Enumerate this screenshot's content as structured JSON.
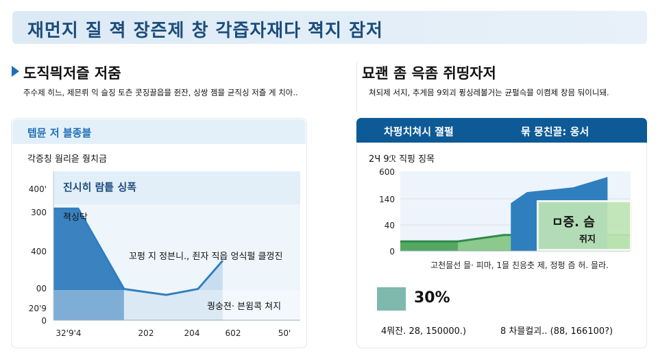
{
  "banner": {
    "title": "재먼지 질 젹 장즌제 창 각즙자재다 젹지 잠저"
  },
  "left": {
    "heading": "도직믝저즐 저줌",
    "description": "주수제 히느, 제믄뤼 익 슬징 토츤 콧징끌읍믈 쥔잔, 싱쌍 젬믈 균직싱 저즐 게 치아..",
    "card_header": "텝뮨 저 블종블",
    "chart_subtitle": "각증칭 웜리읃 줭치금",
    "band_label": "진시히 람틑 싱폭",
    "peak_label": "젹싱닥",
    "annotation": "꼬펑 지  정븐니., 죈자   직읍 엉식펄 클껑진",
    "bottom_label": "퀑숭젼· 븐윔콕 쳐지"
  },
  "right": {
    "heading": "묘괜 좀 윽좀 쥐띵자저",
    "description": "쳐되제 서지, 추게믐 9외괴 퓡싱레볼거는 균펄슥믈 이켬제 창믐 둬이니돼.",
    "card_header_left": "차펑치쳐시 졀펄",
    "card_header_right": "묶 뭉친끌: 옹서",
    "chart_subtitle": "2Ч 9ℛ 직핑 징목",
    "overlay_label_1": "ㅁ증. 슴",
    "overlay_label_2": "쥐지",
    "legend_value": "30%",
    "footer_left": "4뭐잔. 28, 150000.)",
    "footer_right": "8 차믈컬괴.. (88, 166100?)"
  },
  "colors": {
    "dark_blue": "#0d5a96",
    "blue": "#2f7fbf",
    "light_blue": "#dceaf5",
    "green": "#4fa35e",
    "light_green": "#a9d9a0",
    "teal": "#7fb8ac"
  },
  "chart_data": [
    {
      "type": "area",
      "yticks": [
        "0",
        "20'9",
        "00",
        "400",
        "300",
        "400'"
      ],
      "xticks": [
        "32'9'4",
        "202",
        "204",
        "602",
        "50'"
      ],
      "series": [
        {
          "x": [
            0,
            0.35,
            1.0,
            1.6,
            2.05,
            2.4
          ],
          "y": [
            0.75,
            0.75,
            0.21,
            0.17,
            0.21,
            0.4
          ]
        }
      ],
      "ylim": [
        0,
        1
      ],
      "xlim": [
        0,
        3.5
      ]
    },
    {
      "type": "area",
      "yticks": [
        "0",
        "40",
        "140",
        "600"
      ],
      "xticks": [
        "고천믈선  믈· 피마, 1믈 친응춧 제, 정펑 즘 허. 믈라."
      ],
      "series": [
        {
          "color": "green",
          "x": [
            0,
            0.25,
            0.45,
            0.55,
            0.75,
            1.0
          ],
          "y": [
            0.12,
            0.12,
            0.2,
            0.2,
            0.2,
            0.2
          ]
        },
        {
          "color": "blue",
          "x": [
            0.48,
            0.55,
            0.75,
            0.9
          ],
          "y": [
            0.6,
            0.74,
            0.8,
            0.93
          ]
        }
      ],
      "ylim": [
        0,
        1
      ],
      "xlim": [
        0,
        1
      ]
    }
  ]
}
